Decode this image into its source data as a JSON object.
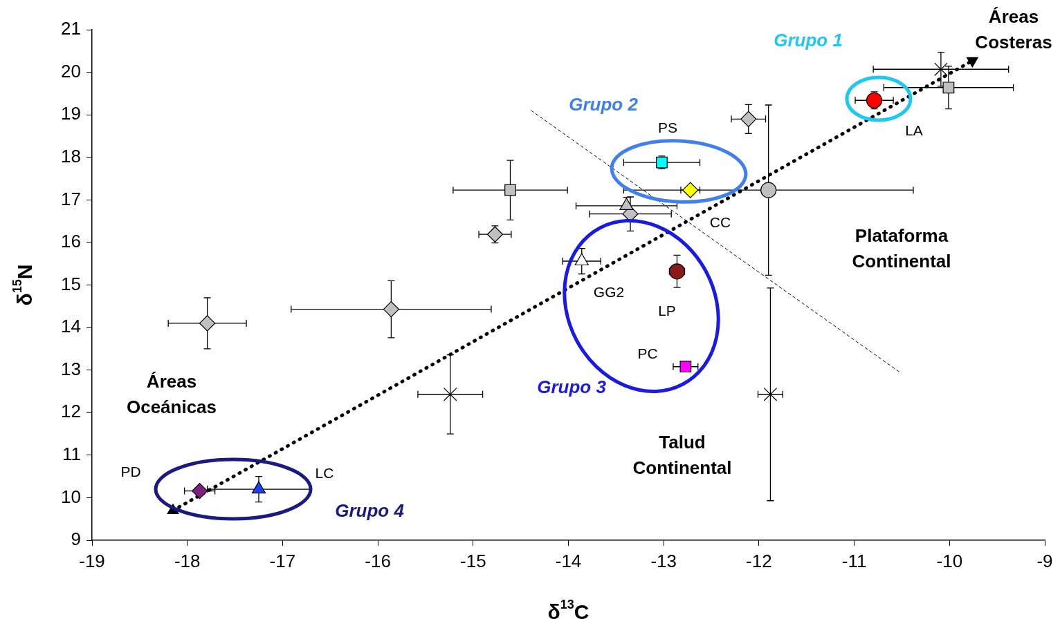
{
  "chart_data": {
    "type": "scatter",
    "xlabel": "δ$^{13}$C",
    "ylabel": "δ$^{15}$N",
    "xlim": [
      -19,
      -9
    ],
    "xticks": [
      -19,
      -18,
      -17,
      -16,
      -15,
      -14,
      -13,
      -12,
      -11,
      -10,
      -9
    ],
    "ylim": [
      9,
      21
    ],
    "yticks": [
      9,
      10,
      11,
      12,
      13,
      14,
      15,
      16,
      17,
      18,
      19,
      20,
      21
    ],
    "grid": false,
    "legend": false,
    "series": [
      {
        "color": "#ff0000",
        "marker": "circle",
        "x": [
          -10.79
        ],
        "values": [
          19.34
        ],
        "errors": [
          0.2
        ],
        "xerrors": [
          0.2
        ]
      },
      {
        "color": "#c0c0c0",
        "marker": "square",
        "x": [
          -10.01
        ],
        "values": [
          19.64
        ],
        "errors": [
          0.5
        ],
        "xerrors": [
          0.68
        ]
      },
      {
        "color": "#000000",
        "marker": "cross",
        "x": [
          -10.09
        ],
        "values": [
          20.07
        ],
        "errors": [
          0.4
        ],
        "xerrors": [
          0.71
        ]
      },
      {
        "color": "#c0c0c0",
        "marker": "diamond",
        "x": [
          -12.11
        ],
        "values": [
          18.9
        ],
        "errors": [
          0.34
        ],
        "xerrors": [
          0.18
        ]
      },
      {
        "color": "#00ffff",
        "marker": "square",
        "x": [
          -13.02
        ],
        "values": [
          17.88
        ],
        "errors": [
          0.15
        ],
        "xerrors": [
          0.4
        ]
      },
      {
        "color": "#ffff00",
        "marker": "diamond",
        "x": [
          -12.72
        ],
        "values": [
          17.23
        ],
        "errors": [
          0.1
        ],
        "xerrors": [
          0.1
        ]
      },
      {
        "color": "#c0c0c0",
        "marker": "circle",
        "x": [
          -11.9
        ],
        "values": [
          17.23
        ],
        "errors": [
          2.0
        ],
        "xerrors": [
          1.52
        ]
      },
      {
        "color": "#000000",
        "marker": "cross",
        "x": [
          -11.88
        ],
        "values": [
          12.43
        ],
        "errors": [
          2.5
        ],
        "xerrors": [
          0.13
        ]
      },
      {
        "color": "#c0c0c0",
        "marker": "square",
        "x": [
          -14.61
        ],
        "values": [
          17.23
        ],
        "errors": [
          0.7
        ],
        "xerrors": [
          0.6
        ]
      },
      {
        "color": "#c0c0c0",
        "marker": "triangle",
        "x": [
          -13.39
        ],
        "values": [
          16.86
        ],
        "errors": [
          0.2
        ],
        "xerrors": [
          0.53
        ]
      },
      {
        "color": "#c0c0c0",
        "marker": "diamond",
        "x": [
          -13.35
        ],
        "values": [
          16.67
        ],
        "errors": [
          0.4
        ],
        "xerrors": [
          0.43
        ]
      },
      {
        "color": "#c0c0c0",
        "marker": "diamond",
        "x": [
          -14.77
        ],
        "values": [
          16.19
        ],
        "errors": [
          0.2
        ],
        "xerrors": [
          0.17
        ]
      },
      {
        "color": "#ffffff",
        "marker": "triangle",
        "x": [
          -13.86
        ],
        "values": [
          15.56
        ],
        "errors": [
          0.3
        ],
        "xerrors": [
          0.2
        ]
      },
      {
        "color": "#8b1a1a",
        "marker": "circle",
        "x": [
          -12.86
        ],
        "values": [
          15.32
        ],
        "errors": [
          0.38
        ],
        "xerrors": [
          0.08
        ]
      },
      {
        "color": "#ff00ff",
        "marker": "square",
        "x": [
          -12.77
        ],
        "values": [
          13.08
        ],
        "xerrors": [
          0.13
        ]
      },
      {
        "color": "#c0c0c0",
        "marker": "diamond",
        "x": [
          -15.86
        ],
        "values": [
          14.43
        ],
        "errors": [
          0.67
        ],
        "xerrors": [
          1.05
        ]
      },
      {
        "color": "#c0c0c0",
        "marker": "diamond",
        "x": [
          -17.79
        ],
        "values": [
          14.1
        ],
        "errors": [
          0.6
        ],
        "xerrors": [
          0.41
        ]
      },
      {
        "color": "#000000",
        "marker": "cross",
        "x": [
          -15.24
        ],
        "values": [
          12.43
        ],
        "errors": [
          0.93
        ],
        "xerrors": [
          0.34
        ]
      },
      {
        "color": "#7f1f7f",
        "marker": "diamond",
        "x": [
          -17.87
        ],
        "values": [
          10.16
        ],
        "xerrors": [
          0.16
        ]
      },
      {
        "color": "#1f3fff",
        "marker": "triangle",
        "x": [
          -17.25
        ],
        "values": [
          10.2
        ],
        "errors": [
          0.3
        ],
        "xerrors": [
          0.54
        ]
      },
      {
        "type": "line",
        "color": "#000000",
        "marker": "triangle",
        "line_style": "dotted",
        "x": [
          -18.15,
          -9.76
        ],
        "values": [
          9.7,
          20.27
        ]
      },
      {
        "type": "line",
        "color": "#000000",
        "marker": "none",
        "line_style": "dashed",
        "x": [
          -14.39,
          -10.51
        ],
        "values": [
          19.1,
          12.93
        ]
      }
    ],
    "annotations": [
      "Grupo 1",
      "Grupo 2",
      "Grupo 3",
      "Grupo 4",
      "PS",
      "LA",
      "CC",
      "GG2",
      "LP",
      "PC",
      "PD",
      "LC",
      "Áreas Oceánicas",
      "Plataforma Continental",
      "Talud Continental",
      "Áreas Costeras"
    ]
  }
}
